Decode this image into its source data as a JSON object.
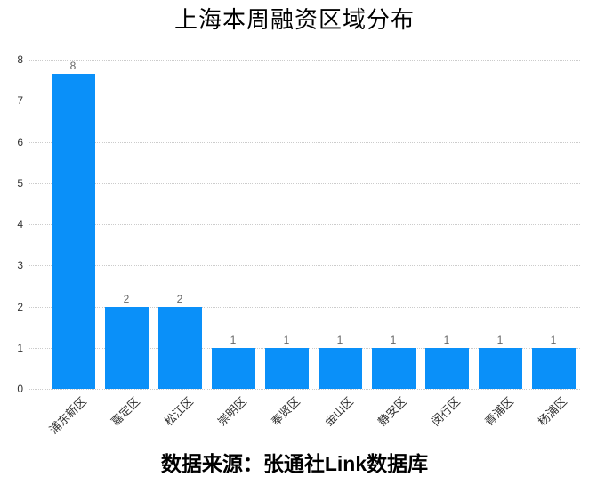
{
  "chart_data": {
    "type": "bar",
    "title": "上海本周融资区域分布",
    "source_caption": "数据来源：张通社Link数据库",
    "categories": [
      "浦东新区",
      "嘉定区",
      "松江区",
      "崇明区",
      "奉贤区",
      "金山区",
      "静安区",
      "闵行区",
      "青浦区",
      "杨浦区"
    ],
    "values": [
      8,
      2,
      2,
      1,
      1,
      1,
      1,
      1,
      1,
      1
    ],
    "xlabel": "",
    "ylabel": "",
    "ylim": [
      0,
      8
    ],
    "y_ticks": [
      0,
      1,
      2,
      3,
      4,
      5,
      6,
      7,
      8
    ],
    "grid": "horizontal-dotted",
    "legend": "none",
    "colors": {
      "bar": "#0a90f9",
      "grid_line": "#cccccc",
      "axis_tick_label": "#333333",
      "data_label": "#666666",
      "title": "#000000",
      "caption": "#000000",
      "background": "#ffffff"
    }
  }
}
